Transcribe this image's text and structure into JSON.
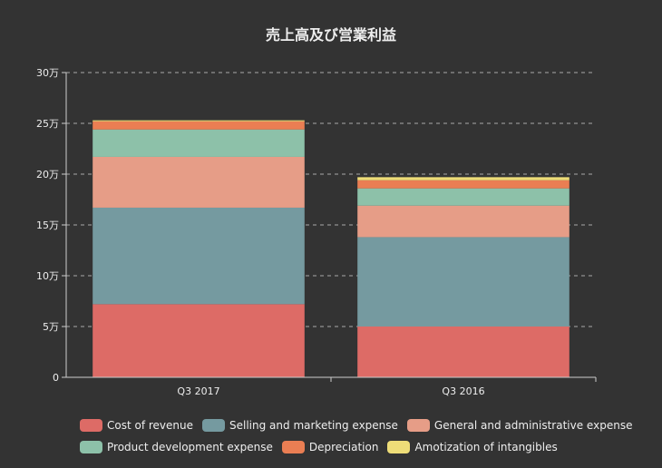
{
  "chart_data": {
    "type": "bar",
    "stacked": true,
    "title": "売上高及び営業利益",
    "categories": [
      "Q3 2017",
      "Q3 2016"
    ],
    "y_ticks": [
      "0",
      "5万",
      "10万",
      "15万",
      "20万",
      "25万",
      "30万"
    ],
    "ylim": [
      0,
      300000
    ],
    "grid": true,
    "legend_position": "bottom",
    "series": [
      {
        "name": "Cost of revenue",
        "color": "#dd6b66",
        "values": [
          72000,
          50000
        ]
      },
      {
        "name": "Selling and marketing expense",
        "color": "#759aa0",
        "values": [
          95000,
          88000
        ]
      },
      {
        "name": "General and administrative expense",
        "color": "#e69d87",
        "values": [
          50000,
          31000
        ]
      },
      {
        "name": "Product development expense",
        "color": "#8dc1a9",
        "values": [
          27000,
          17000
        ]
      },
      {
        "name": "Depreciation",
        "color": "#ea7e53",
        "values": [
          8000,
          8000
        ]
      },
      {
        "name": "Amotization of intangibles",
        "color": "#eedd78",
        "values": [
          1000,
          3000
        ]
      }
    ]
  }
}
